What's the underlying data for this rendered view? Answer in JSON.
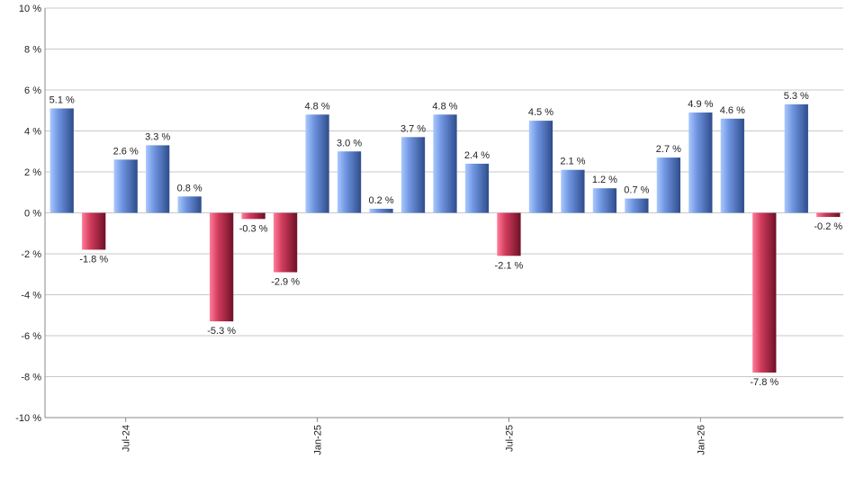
{
  "chart_data": {
    "type": "bar",
    "title": "",
    "xlabel": "",
    "ylabel": "",
    "ylim": [
      -10,
      10
    ],
    "y_ticks": [
      -10,
      -8,
      -6,
      -4,
      -2,
      0,
      2,
      4,
      6,
      8,
      10
    ],
    "y_tick_labels": [
      "-10 %",
      "-8 %",
      "-6 %",
      "-4 %",
      "-2 %",
      "0 %",
      "2 %",
      "4 %",
      "6 %",
      "8 %",
      "10 %"
    ],
    "grid": true,
    "categories": [
      "2024-05",
      "2024-06",
      "2024-07",
      "2024-08",
      "2024-09",
      "2024-10",
      "2024-11",
      "2024-12",
      "2025-01",
      "2025-02",
      "2025-03",
      "2025-04",
      "2025-05",
      "2025-06",
      "2025-07",
      "2025-08",
      "2025-09",
      "2025-10",
      "2025-11",
      "2025-12",
      "2026-01",
      "2026-02",
      "2026-03",
      "2026-04",
      "2026-05"
    ],
    "values": [
      5.1,
      -1.8,
      2.6,
      3.3,
      0.8,
      -5.3,
      -0.3,
      -2.9,
      4.8,
      3.0,
      0.2,
      3.7,
      4.8,
      2.4,
      -2.1,
      4.5,
      2.1,
      1.2,
      0.7,
      2.7,
      4.9,
      4.6,
      -7.8,
      5.3,
      -0.2
    ],
    "value_labels": [
      "5.1 %",
      "-1.8 %",
      "2.6 %",
      "3.3 %",
      "0.8 %",
      "-5.3 %",
      "-0.3 %",
      "-2.9 %",
      "4.8 %",
      "3.0 %",
      "0.2 %",
      "3.7 %",
      "4.8 %",
      "2.4 %",
      "-2.1 %",
      "4.5 %",
      "2.1 %",
      "1.2 %",
      "0.7 %",
      "2.7 %",
      "4.9 %",
      "4.6 %",
      "-7.8 %",
      "5.3 %",
      "-0.2 %"
    ],
    "x_tick_labels": [
      {
        "label": "Jul-24",
        "at": "2024-07"
      },
      {
        "label": "Jan-25",
        "at": "2025-01"
      },
      {
        "label": "Jul-25",
        "at": "2025-07"
      },
      {
        "label": "Jan-26",
        "at": "2026-01"
      }
    ],
    "colors": {
      "positive_light": "#aac8ff",
      "positive_mid": "#6f95e0",
      "positive_dark": "#2e4c8c",
      "negative_light": "#ff7d9a",
      "negative_mid": "#d23c5c",
      "negative_dark": "#6e1028"
    }
  }
}
